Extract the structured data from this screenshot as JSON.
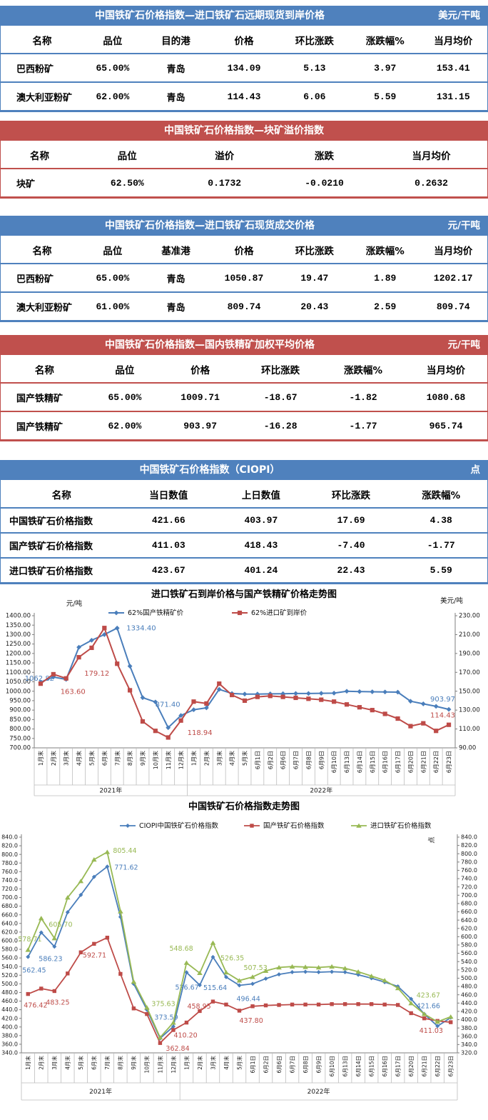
{
  "colors": {
    "blue_header": "#4f81bd",
    "red_header": "#c0504d",
    "series_blue": "#4a7ebb",
    "series_red": "#be4b48",
    "series_green": "#98b954"
  },
  "tables": [
    {
      "accent": "blue",
      "title": "中国铁矿石价格指数—进口铁矿石远期现货到岸价格",
      "unit": "美元/干吨",
      "columns": [
        "名称",
        "品位",
        "目的港",
        "价格",
        "环比涨跌",
        "涨跌幅%",
        "当月均价"
      ],
      "rows": [
        [
          "巴西粉矿",
          "65.00%",
          "青岛",
          "134.09",
          "5.13",
          "3.97",
          "153.41"
        ],
        [
          "澳大利亚粉矿",
          "62.00%",
          "青岛",
          "114.43",
          "6.06",
          "5.59",
          "131.15"
        ]
      ]
    },
    {
      "accent": "red",
      "title": "中国铁矿石价格指数—块矿溢价指数",
      "unit": "",
      "columns": [
        "名称",
        "品位",
        "溢价",
        "涨跌",
        "当月均价"
      ],
      "rows": [
        [
          "块矿",
          "62.50%",
          "0.1732",
          "-0.0210",
          "0.2632"
        ]
      ]
    },
    {
      "accent": "blue",
      "title": "中国铁矿石价格指数—进口铁矿石现货成交价格",
      "unit": "元/干吨",
      "columns": [
        "名称",
        "品位",
        "基准港",
        "价格",
        "环比涨跌",
        "涨跌幅%",
        "当月均价"
      ],
      "rows": [
        [
          "巴西粉矿",
          "65.00%",
          "青岛",
          "1050.87",
          "19.47",
          "1.89",
          "1202.17"
        ],
        [
          "澳大利亚粉矿",
          "61.00%",
          "青岛",
          "809.74",
          "20.43",
          "2.59",
          "809.74"
        ]
      ]
    },
    {
      "accent": "red",
      "title": "中国铁矿石价格指数—国内铁精矿加权平均价格",
      "unit": "元/干吨",
      "columns": [
        "名称",
        "品位",
        "价格",
        "环比涨跌",
        "涨跌幅%",
        "当月均价"
      ],
      "rows": [
        [
          "国产铁精矿",
          "65.00%",
          "1009.71",
          "-18.67",
          "-1.82",
          "1080.68"
        ],
        [
          "国产铁精矿",
          "62.00%",
          "903.97",
          "-16.28",
          "-1.77",
          "965.74"
        ]
      ]
    },
    {
      "accent": "blue",
      "title": "中国铁矿石价格指数（CIOPI）",
      "unit": "点",
      "columns": [
        "名称",
        "当日数值",
        "上日数值",
        "环比涨跌",
        "涨跌幅%"
      ],
      "rows": [
        [
          "中国铁矿石价格指数",
          "421.66",
          "403.97",
          "17.69",
          "4.38"
        ],
        [
          "国产铁矿石价格指数",
          "411.03",
          "418.43",
          "-7.40",
          "-1.77"
        ],
        [
          "进口铁矿石价格指数",
          "423.67",
          "401.24",
          "22.43",
          "5.59"
        ]
      ]
    }
  ],
  "chart_data": [
    {
      "type": "line",
      "title": "进口铁矿石到岸价格与国产铁精矿价格走势图",
      "left_axis": {
        "unit": "元/吨",
        "min": 700,
        "max": 1400,
        "step": 50,
        "decimals": 2
      },
      "right_axis": {
        "unit": "美元/吨",
        "min": 90,
        "max": 230,
        "step": 20,
        "decimals": 2
      },
      "x": [
        "1月末",
        "2月末",
        "3月末",
        "4月末",
        "5月末",
        "6月末",
        "7月末",
        "8月末",
        "9月末",
        "10月末",
        "11月末",
        "12月末",
        "1月末",
        "2月末",
        "3月末",
        "4月末",
        "5月末",
        "6月1日",
        "6月2日",
        "6月6日",
        "6月7日",
        "6月8日",
        "6月9日",
        "6月10日",
        "6月13日",
        "6月14日",
        "6月15日",
        "6月16日",
        "6月17日",
        "6月20日",
        "6月21日",
        "6月22日",
        "6月23日"
      ],
      "year_groups": [
        {
          "label": "2021年",
          "count": 12
        },
        {
          "label": "2022年",
          "count": 21
        }
      ],
      "series": [
        {
          "name": "62%国产铁精矿价",
          "color_key": "blue",
          "marker": "diamond",
          "axis": "left",
          "values": [
            1048,
            1075,
            1062.82,
            1233,
            1270,
            1300,
            1334.4,
            1133,
            966,
            943,
            807,
            871.4,
            902,
            912,
            1010,
            988,
            985,
            985,
            986,
            987,
            988,
            988,
            989,
            990,
            1000,
            998,
            997,
            996,
            995,
            947,
            933,
            920,
            903.97
          ],
          "labels": {
            "2": "1062.82",
            "6": "1334.40",
            "11": "871.40",
            "32": "903.97"
          }
        },
        {
          "name": "62%进口矿到岸价",
          "color_key": "red",
          "marker": "square",
          "axis": "right",
          "values": [
            158,
            168,
            163.6,
            186,
            196,
            217,
            179.12,
            151,
            118,
            108,
            101,
            118.94,
            139,
            137,
            158,
            146,
            140,
            144,
            145,
            144,
            143,
            142,
            141,
            139,
            136,
            133,
            130,
            126,
            121,
            113,
            116,
            108,
            114.43
          ],
          "labels": {
            "2": "163.60",
            "6": "179.12",
            "11": "118.94",
            "32": "114.43"
          }
        }
      ]
    },
    {
      "type": "line",
      "title": "中国铁矿石价格指数走势图",
      "left_axis": {
        "unit": "",
        "min": 340,
        "max": 840,
        "step": 20,
        "decimals": 1
      },
      "right_axis": {
        "unit": "点",
        "min": 320,
        "max": 840,
        "step": 20,
        "decimals": 1
      },
      "x": [
        "1月末",
        "2月末",
        "3月末",
        "4月末",
        "5月末",
        "6月末",
        "7月末",
        "8月末",
        "9月末",
        "10月末",
        "11月末",
        "12月末",
        "1月末",
        "2月末",
        "3月末",
        "4月末",
        "5月末",
        "6月1日",
        "6月2日",
        "6月6日",
        "6月7日",
        "6月8日",
        "6月9日",
        "6月10日",
        "6月13日",
        "6月14日",
        "6月15日",
        "6月16日",
        "6月17日",
        "6月20日",
        "6月21日",
        "6月22日",
        "6月23日"
      ],
      "year_groups": [
        {
          "label": "2021年",
          "count": 12
        },
        {
          "label": "2022年",
          "count": 21
        }
      ],
      "series": [
        {
          "name": "CIOPI中国铁矿石价格指数",
          "color_key": "blue",
          "marker": "diamond",
          "axis": "left",
          "values": [
            562.45,
            619,
            586.23,
            666,
            706,
            748,
            771.62,
            655,
            500,
            440,
            373.59,
            401,
            526.67,
            497,
            562,
            515.64,
            496.44,
            500,
            512,
            522,
            527,
            528,
            527,
            528,
            527,
            521,
            513,
            504,
            494,
            465,
            430,
            402,
            421.66
          ],
          "labels": {
            "0": "562.45",
            "2": "586.23",
            "6": "771.62",
            "10": "373.59",
            "12": "526.67",
            "15": "515.64",
            "16": "496.44",
            "32": "421.66"
          }
        },
        {
          "name": "国产铁矿石价格指数",
          "color_key": "red",
          "marker": "square",
          "axis": "left",
          "values": [
            476.42,
            489,
            483.25,
            524,
            573,
            592.71,
            607,
            523,
            443,
            430,
            362.84,
            393,
            410.2,
            437,
            458.95,
            452,
            437.8,
            448,
            450,
            451,
            452,
            452,
            452,
            453,
            453,
            453,
            453,
            452,
            451,
            432,
            420,
            414,
            411.03
          ],
          "labels": {
            "0": "476.42",
            "2": "483.25",
            "5": "592.71",
            "10": "362.84",
            "12": "410.20",
            "14": "458.95",
            "16": "437.80",
            "32": "411.03"
          }
        },
        {
          "name": "进口铁矿石价格指数",
          "color_key": "green",
          "marker": "triangle",
          "axis": "left",
          "values": [
            578.71,
            652,
            605.7,
            700,
            738,
            788,
            805.44,
            668,
            505,
            445,
            375.63,
            410,
            548.68,
            525,
            595,
            526.35,
            507.53,
            516,
            530,
            538,
            540,
            539,
            538,
            540,
            536,
            528,
            518,
            508,
            490,
            455,
            430,
            412,
            423.67
          ],
          "labels": {
            "0": "578.71",
            "2": "605.70",
            "6": "805.44",
            "10": "375.63",
            "12": "548.68",
            "15": "526.35",
            "16": "507.53",
            "32": "423.67"
          }
        }
      ]
    }
  ]
}
